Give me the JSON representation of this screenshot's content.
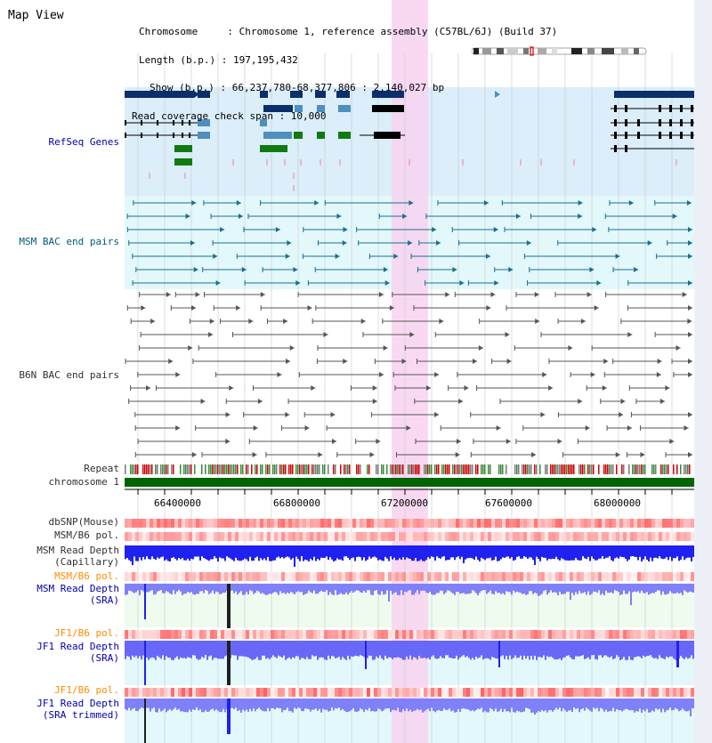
{
  "title": "Map View",
  "info": {
    "lines": [
      "Chromosome     : Chromosome 1, reference assembly (C57BL/6J) (Build 37)",
      "Length (b.p.) : 197,195,432",
      "Show (b.p.) : 66,237,780-68,377,806 : 2,140,027 bp",
      "Read coverage check span : 10,000"
    ]
  },
  "tracks": {
    "refseq": "RefSeq Genes",
    "msm_bac": "MSM BAC end pairs",
    "b6n_bac": "B6N BAC end pairs",
    "repeat": "Repeat",
    "chromosome": "chromosome 1",
    "dbsnp": "dbSNP(Mouse)",
    "msm_b6_pol_1": "MSM/B6 pol.",
    "msm_depth_cap_1": "MSM Read Depth",
    "msm_depth_cap_2": "(Capillary)",
    "msm_b6_pol_2": "MSM/B6 pol.",
    "msm_depth_sra_1": "MSM Read Depth",
    "msm_depth_sra_2": "(SRA)",
    "jf1_b6_pol_1": "JF1/B6 pol.",
    "jf1_depth_sra_1": "JF1 Read Depth",
    "jf1_depth_sra_2": "(SRA)",
    "jf1_b6_pol_2": "JF1/B6 pol.",
    "jf1_depth_trim_1": "JF1 Read Depth",
    "jf1_depth_trim_2": "(SRA trimmed)"
  },
  "axis": {
    "ticks": [
      "66400000",
      "66800000",
      "67200000",
      "67600000",
      "68000000"
    ]
  },
  "colors": {
    "refseq_bg": "#dbeefa",
    "msm_bg": "#e3f8fb",
    "highlight": "#f8d2f0",
    "chrom_bar": "#006400",
    "gene_dark": "#0a2f6b",
    "gene_mid": "#4e8fc0",
    "gene_green": "#107a10",
    "bac_teal": "#1a6f8f",
    "bac_gray": "#555555",
    "depth_blue": "#2020f0",
    "depth_light": "#8080f8"
  }
}
